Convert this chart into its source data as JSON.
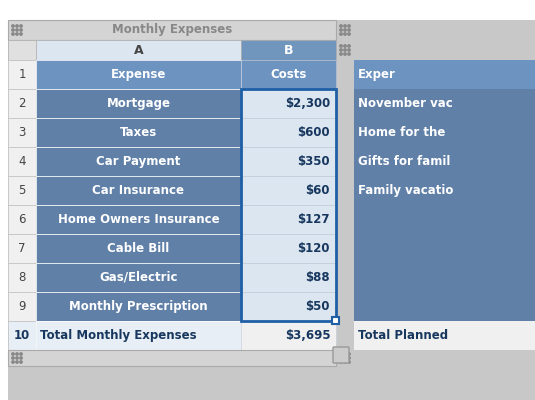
{
  "sheet_title": "Monthly Expenses",
  "col1_data": [
    "Expense",
    "Mortgage",
    "Taxes",
    "Car Payment",
    "Car Insurance",
    "Home Owners Insurance",
    "Cable Bill",
    "Gas/Electric",
    "Monthly Prescription",
    "Total Monthly Expenses"
  ],
  "col2_data": [
    "Costs",
    "$2,300",
    "$600",
    "$350",
    "$60",
    "$127",
    "$120",
    "$88",
    "$50",
    "$3,695"
  ],
  "right_col_data": [
    "Exper",
    "November vac",
    "Home for the",
    "Gifts for famil",
    "Family vacatio",
    "",
    "",
    "",
    "Total Planned"
  ],
  "header_bg": "#6d93c0",
  "header_text": "#ffffff",
  "row_bg_dark": "#6080a8",
  "row_bg_light": "#dce6f1",
  "selected_col_bg": "#dce6f1",
  "total_text_color": "#17375e",
  "outer_bg": "#c8c8c8",
  "toolbar_bg": "#d4d4d4",
  "col_a_header_bg": "#dce6f1",
  "col_b_header_bg": "#7096be",
  "row_num_bg": "#f0f0f0",
  "total_row_bg_a": "#e8eef5",
  "total_row_bg_b": "#f0f0f0",
  "right_empty_bg": "#6080a8",
  "selection_border": "#1f5fa6",
  "handle_bg": "#c8d4e4"
}
